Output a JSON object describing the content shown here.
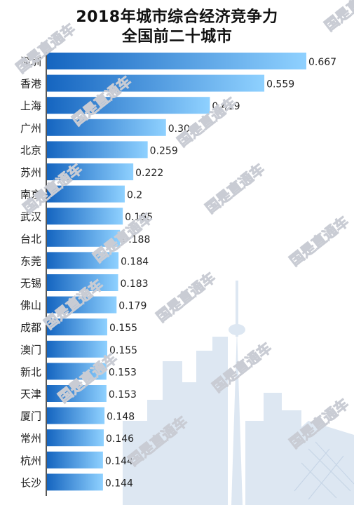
{
  "title_line1": "2018年城市综合经济竞争力",
  "title_line2": "全国前二十城市",
  "watermark_text": "国是直通车",
  "colors": {
    "bar_dark": "#1565c0",
    "bar_light": "#8fd1ff",
    "axis": "#222222",
    "skyline": "#dde7f2",
    "label": "#222222"
  },
  "chart_data": {
    "type": "bar",
    "orientation": "horizontal",
    "title": "2018年城市综合经济竞争力 全国前二十城市",
    "categories": [
      "深圳",
      "香港",
      "上海",
      "广州",
      "北京",
      "苏州",
      "南京",
      "武汉",
      "台北",
      "东莞",
      "无锡",
      "佛山",
      "成都",
      "澳门",
      "新北",
      "天津",
      "厦门",
      "常州",
      "杭州",
      "长沙"
    ],
    "values": [
      0.667,
      0.559,
      0.419,
      0.306,
      0.259,
      0.222,
      0.2,
      0.195,
      0.188,
      0.184,
      0.183,
      0.179,
      0.155,
      0.155,
      0.153,
      0.153,
      0.148,
      0.146,
      0.144,
      0.144
    ],
    "value_labels": [
      "0.667",
      "0.559",
      "0.419",
      "0.306",
      "0.259",
      "0.222",
      "0.2",
      "0.195",
      "0.188",
      "0.184",
      "0.183",
      "0.179",
      "0.155",
      "0.155",
      "0.153",
      "0.153",
      "0.148",
      "0.146",
      "0.144",
      "0.144"
    ],
    "xlim": [
      0,
      0.667
    ],
    "grid": false,
    "legend": "none"
  }
}
